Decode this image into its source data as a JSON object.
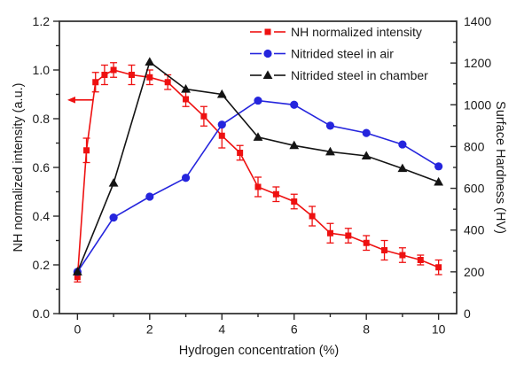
{
  "chart_data": {
    "type": "line",
    "title": "",
    "xlabel": "Hydrogen concentration (%)",
    "ylabel_left": "NH normalized intensity (a.u.)",
    "ylabel_right": "Surface Hardness (HV)",
    "grid": false,
    "legend_position": "top-inside",
    "xlim": [
      -0.5,
      10.5
    ],
    "x_major_ticks": [
      0,
      2,
      4,
      6,
      8,
      10
    ],
    "x_minor_ticks": [
      1,
      3,
      5,
      7,
      9
    ],
    "ylim_left": [
      0,
      1.2
    ],
    "y_major_ticks_left": [
      "0.0",
      "0.2",
      "0.4",
      "0.6",
      "0.8",
      "1.0",
      "1.2"
    ],
    "y_minor_ticks_left": [
      0.1,
      0.3,
      0.5,
      0.7,
      0.9,
      1.1
    ],
    "ylim_right": [
      0,
      1400
    ],
    "y_major_ticks_right": [
      "0",
      "200",
      "400",
      "600",
      "800",
      "1000",
      "1200",
      "1400"
    ],
    "y_minor_ticks_right": [
      100,
      300,
      500,
      700,
      900,
      1100,
      1300
    ],
    "frame_color": "#2a2a2a",
    "text_color": "#1a1a1a",
    "series": [
      {
        "name": "NH normalized intensity",
        "axis": "left",
        "color": "#ee1111",
        "marker": "square",
        "x": [
          0,
          0.25,
          0.5,
          0.75,
          1,
          1.5,
          2,
          2.5,
          3,
          3.5,
          4,
          4.5,
          5,
          5.5,
          6,
          6.5,
          7,
          7.5,
          8,
          8.5,
          9,
          9.5,
          10
        ],
        "y": [
          0.15,
          0.67,
          0.95,
          0.98,
          1.0,
          0.98,
          0.97,
          0.95,
          0.88,
          0.81,
          0.73,
          0.66,
          0.52,
          0.49,
          0.46,
          0.4,
          0.33,
          0.32,
          0.29,
          0.26,
          0.24,
          0.22,
          0.19
        ],
        "yerr": [
          0.02,
          0.05,
          0.04,
          0.04,
          0.03,
          0.04,
          0.03,
          0.03,
          0.03,
          0.04,
          0.05,
          0.03,
          0.04,
          0.03,
          0.03,
          0.04,
          0.04,
          0.03,
          0.03,
          0.04,
          0.03,
          0.02,
          0.03
        ]
      },
      {
        "name": "Nitrided steel in air",
        "axis": "right",
        "color": "#2525dd",
        "marker": "circle",
        "x": [
          0,
          1,
          2,
          3,
          4,
          5,
          6,
          7,
          8,
          9,
          10
        ],
        "y": [
          200,
          460,
          560,
          650,
          905,
          1020,
          1000,
          900,
          865,
          810,
          705
        ]
      },
      {
        "name": "Nitrided steel in chamber",
        "axis": "right",
        "color": "#141414",
        "marker": "triangle",
        "x": [
          0,
          1,
          2,
          3,
          4,
          5,
          6,
          7,
          8,
          9,
          10
        ],
        "y": [
          200,
          625,
          1205,
          1075,
          1050,
          845,
          805,
          775,
          755,
          695,
          630
        ]
      }
    ],
    "annotations": [
      {
        "type": "arrow",
        "direction": "left",
        "axis": "left",
        "y": 0.877,
        "x_from": 0.43,
        "x_to": -0.28,
        "color": "#ee1111"
      }
    ]
  }
}
